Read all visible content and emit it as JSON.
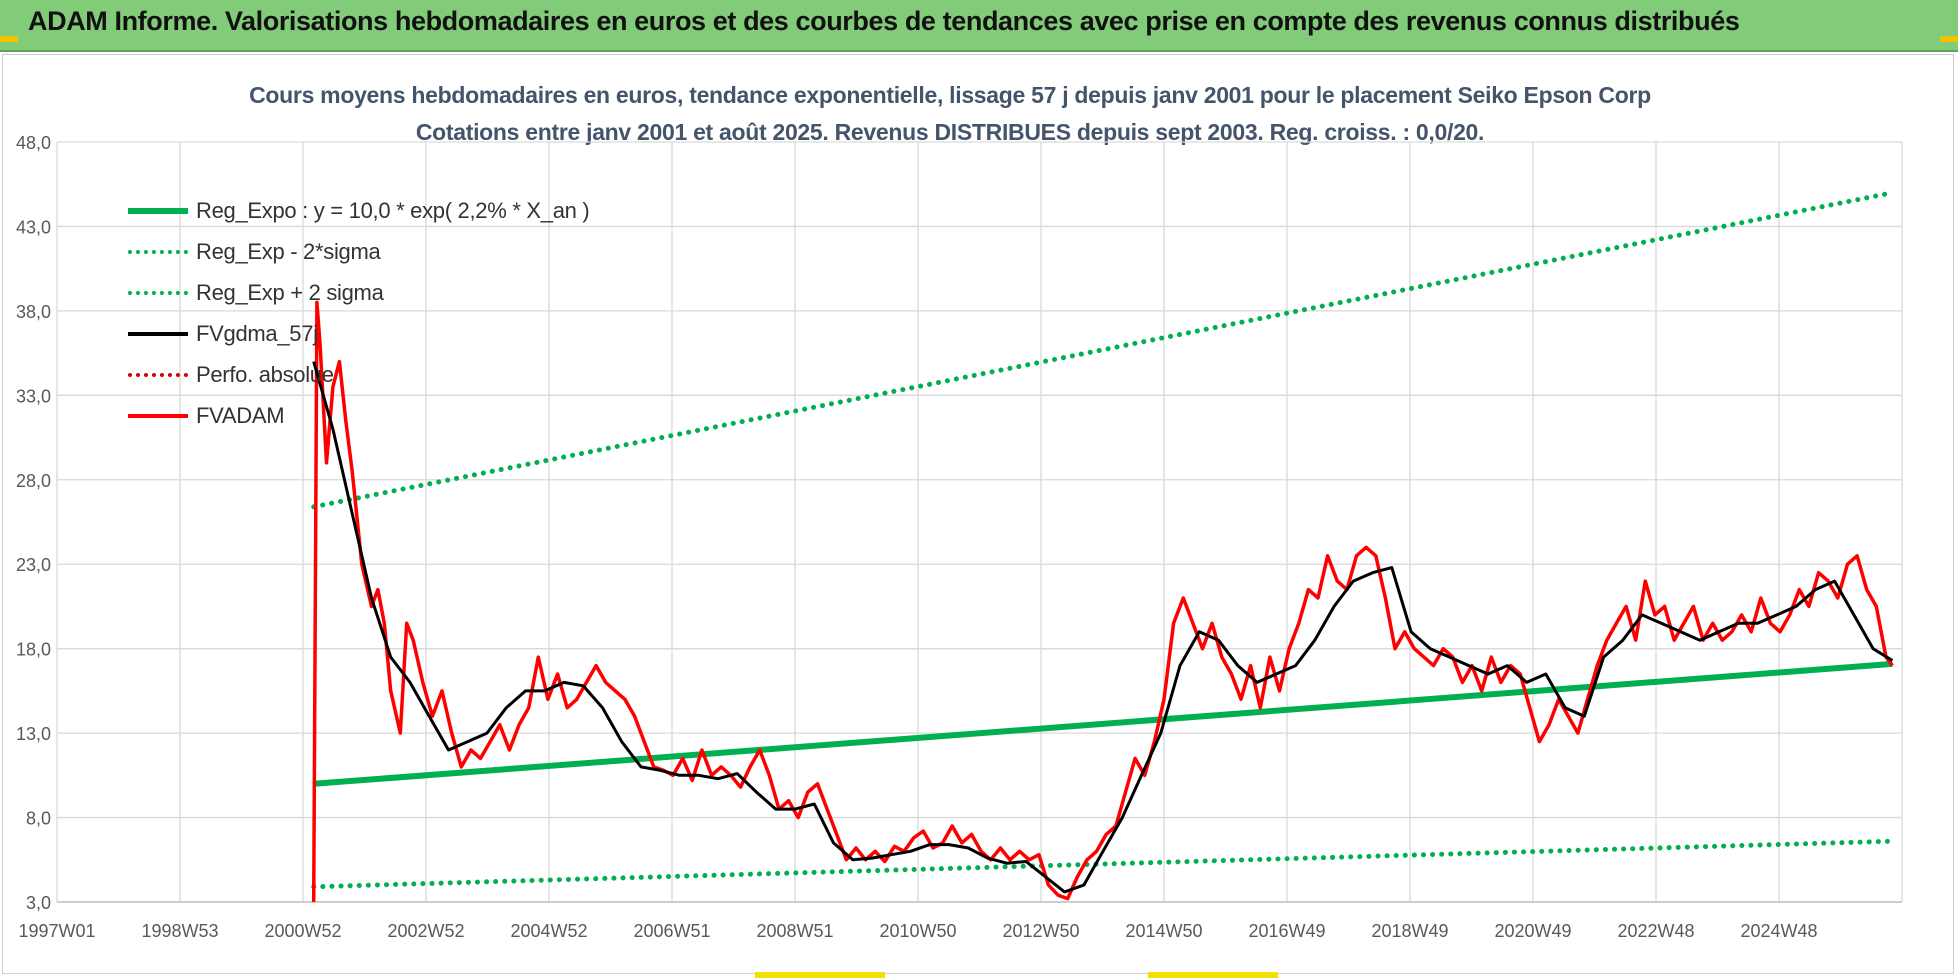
{
  "banner": {
    "title": "ADAM Informe. Valorisations hebdomadaires en euros et des courbes de tendances avec prise en compte des revenus connus distribués",
    "background": "#82cb79"
  },
  "chart_data": {
    "type": "line",
    "title_line1": "Cours moyens hebdomadaires en euros, tendance exponentielle, lissage 57 j depuis janv 2001  pour le placement Seiko Epson Corp",
    "title_line2": "Cotations entre janv 2001 et août 2025.  Revenus DISTRIBUES depuis sept 2003.  Reg. croiss. : 0,0/20.",
    "y_ticks": [
      "3,0",
      "8,0",
      "13,0",
      "18,0",
      "23,0",
      "28,0",
      "33,0",
      "38,0",
      "43,0",
      "48,0"
    ],
    "ylim": [
      3,
      48
    ],
    "x_ticks": [
      "1997W01",
      "1998W53",
      "2000W52",
      "2002W52",
      "2004W52",
      "2006W51",
      "2008W51",
      "2010W50",
      "2012W50",
      "2014W50",
      "2016W49",
      "2018W49",
      "2020W49",
      "2022W48",
      "2024W48"
    ],
    "xlim": [
      1997.0,
      2025.75
    ],
    "grid": true,
    "legend_position": "top-left",
    "series": [
      {
        "name": "Reg_Expo : y = 10,0 * exp( 2,2% *  X_an )",
        "color": "#00b050",
        "style": "solid",
        "x": [
          2001.0,
          2025.6
        ],
        "y": [
          10.0,
          17.1
        ]
      },
      {
        "name": "Reg_Exp - 2*sigma",
        "color": "#00b050",
        "style": "dotted",
        "x": [
          2001.0,
          2025.6
        ],
        "y": [
          3.9,
          6.6
        ]
      },
      {
        "name": "Reg_Exp + 2 sigma",
        "color": "#00b050",
        "style": "dotted",
        "x": [
          2001.0,
          2025.6
        ],
        "y": [
          26.4,
          45.0
        ]
      },
      {
        "name": "FVgdma_57j",
        "color": "#000000",
        "style": "solid",
        "x": [
          2001.0,
          2001.3,
          2001.6,
          2001.9,
          2002.2,
          2002.5,
          2002.8,
          2003.1,
          2003.4,
          2003.7,
          2004.0,
          2004.3,
          2004.6,
          2004.9,
          2005.2,
          2005.5,
          2005.8,
          2006.1,
          2006.4,
          2006.7,
          2007.0,
          2007.3,
          2007.6,
          2007.9,
          2008.2,
          2008.5,
          2008.8,
          2009.1,
          2009.4,
          2009.7,
          2010.0,
          2010.3,
          2010.6,
          2010.9,
          2011.2,
          2011.5,
          2011.8,
          2012.1,
          2012.4,
          2012.7,
          2013.0,
          2013.3,
          2013.6,
          2013.9,
          2014.2,
          2014.5,
          2014.8,
          2015.1,
          2015.4,
          2015.7,
          2016.0,
          2016.3,
          2016.6,
          2016.9,
          2017.2,
          2017.5,
          2017.8,
          2018.1,
          2018.4,
          2018.7,
          2019.0,
          2019.3,
          2019.6,
          2019.9,
          2020.2,
          2020.5,
          2020.8,
          2021.1,
          2021.4,
          2021.7,
          2022.0,
          2022.3,
          2022.6,
          2022.9,
          2023.2,
          2023.5,
          2023.8,
          2024.1,
          2024.4,
          2024.7,
          2025.0,
          2025.3,
          2025.6
        ],
        "y": [
          35.0,
          31.0,
          26.0,
          21.0,
          17.5,
          16.0,
          14.0,
          12.0,
          12.5,
          13.0,
          14.5,
          15.5,
          15.5,
          16.0,
          15.8,
          14.5,
          12.5,
          11.0,
          10.8,
          10.5,
          10.5,
          10.3,
          10.6,
          9.5,
          8.5,
          8.5,
          8.8,
          6.5,
          5.5,
          5.6,
          5.8,
          6.0,
          6.4,
          6.4,
          6.2,
          5.6,
          5.3,
          5.4,
          4.5,
          3.6,
          4.0,
          6.0,
          8.0,
          10.5,
          13.0,
          17.0,
          19.0,
          18.5,
          17.0,
          16.0,
          16.5,
          17.0,
          18.5,
          20.5,
          22.0,
          22.5,
          22.8,
          19.0,
          18.0,
          17.5,
          17.0,
          16.5,
          17.0,
          16.0,
          16.5,
          14.5,
          14.0,
          17.5,
          18.5,
          20.0,
          19.5,
          19.0,
          18.5,
          19.0,
          19.5,
          19.5,
          20.0,
          20.5,
          21.5,
          22.0,
          20.0,
          18.0,
          17.3
        ]
      },
      {
        "name": "Perfo. absolue",
        "color": "#e00000",
        "style": "dotted",
        "x": [],
        "y": []
      },
      {
        "name": "FVADAM",
        "color": "#ff0000",
        "style": "solid",
        "x": [
          2001.0,
          2001.05,
          2001.1,
          2001.2,
          2001.3,
          2001.4,
          2001.5,
          2001.6,
          2001.75,
          2001.9,
          2002.0,
          2002.1,
          2002.2,
          2002.35,
          2002.45,
          2002.55,
          2002.7,
          2002.85,
          2003.0,
          2003.15,
          2003.3,
          2003.45,
          2003.6,
          2003.75,
          2003.9,
          2004.05,
          2004.2,
          2004.35,
          2004.5,
          2004.65,
          2004.8,
          2004.95,
          2005.1,
          2005.25,
          2005.4,
          2005.55,
          2005.7,
          2005.85,
          2006.0,
          2006.15,
          2006.3,
          2006.45,
          2006.6,
          2006.75,
          2006.9,
          2007.05,
          2007.2,
          2007.35,
          2007.5,
          2007.65,
          2007.8,
          2007.95,
          2008.1,
          2008.25,
          2008.4,
          2008.55,
          2008.7,
          2008.85,
          2009.0,
          2009.15,
          2009.3,
          2009.45,
          2009.6,
          2009.75,
          2009.9,
          2010.05,
          2010.2,
          2010.35,
          2010.5,
          2010.65,
          2010.8,
          2010.95,
          2011.1,
          2011.25,
          2011.4,
          2011.55,
          2011.7,
          2011.85,
          2012.0,
          2012.15,
          2012.3,
          2012.45,
          2012.6,
          2012.75,
          2012.9,
          2013.05,
          2013.2,
          2013.35,
          2013.5,
          2013.65,
          2013.8,
          2013.95,
          2014.1,
          2014.25,
          2014.4,
          2014.55,
          2014.7,
          2014.85,
          2015.0,
          2015.15,
          2015.3,
          2015.45,
          2015.6,
          2015.75,
          2015.9,
          2016.05,
          2016.2,
          2016.35,
          2016.5,
          2016.65,
          2016.8,
          2016.95,
          2017.1,
          2017.25,
          2017.4,
          2017.55,
          2017.7,
          2017.85,
          2018.0,
          2018.15,
          2018.3,
          2018.45,
          2018.6,
          2018.75,
          2018.9,
          2019.05,
          2019.2,
          2019.35,
          2019.5,
          2019.65,
          2019.8,
          2019.95,
          2020.1,
          2020.25,
          2020.4,
          2020.55,
          2020.7,
          2020.85,
          2021.0,
          2021.15,
          2021.3,
          2021.45,
          2021.6,
          2021.75,
          2021.9,
          2022.05,
          2022.2,
          2022.35,
          2022.5,
          2022.65,
          2022.8,
          2022.95,
          2023.1,
          2023.25,
          2023.4,
          2023.55,
          2023.7,
          2023.85,
          2024.0,
          2024.15,
          2024.3,
          2024.45,
          2024.6,
          2024.75,
          2024.9,
          2025.05,
          2025.2,
          2025.35,
          2025.5,
          2025.6
        ],
        "y": [
          3.0,
          38.5,
          36.0,
          29.0,
          33.5,
          35.0,
          31.5,
          28.5,
          23.0,
          20.5,
          21.5,
          19.5,
          15.5,
          13.0,
          19.5,
          18.5,
          16.0,
          14.0,
          15.5,
          13.0,
          11.0,
          12.0,
          11.5,
          12.5,
          13.5,
          12.0,
          13.5,
          14.5,
          17.5,
          15.0,
          16.5,
          14.5,
          15.0,
          16.0,
          17.0,
          16.0,
          15.5,
          15.0,
          14.0,
          12.5,
          11.0,
          10.8,
          10.5,
          11.5,
          10.2,
          12.0,
          10.5,
          11.0,
          10.5,
          9.8,
          11.0,
          12.0,
          10.5,
          8.5,
          9.0,
          8.0,
          9.5,
          10.0,
          8.5,
          7.0,
          5.5,
          6.2,
          5.5,
          6.0,
          5.4,
          6.3,
          6.0,
          6.8,
          7.2,
          6.2,
          6.5,
          7.5,
          6.5,
          7.0,
          6.0,
          5.5,
          6.2,
          5.5,
          6.0,
          5.5,
          5.8,
          4.0,
          3.4,
          3.2,
          4.5,
          5.5,
          6.0,
          7.0,
          7.5,
          9.5,
          11.5,
          10.5,
          12.5,
          15.0,
          19.5,
          21.0,
          19.5,
          18.0,
          19.5,
          17.5,
          16.5,
          15.0,
          17.0,
          14.5,
          17.5,
          15.5,
          18.0,
          19.5,
          21.5,
          21.0,
          23.5,
          22.0,
          21.5,
          23.5,
          24.0,
          23.5,
          21.0,
          18.0,
          19.0,
          18.0,
          17.5,
          17.0,
          18.0,
          17.5,
          16.0,
          17.0,
          15.5,
          17.5,
          16.0,
          17.0,
          16.5,
          14.5,
          12.5,
          13.5,
          15.0,
          14.0,
          13.0,
          15.0,
          17.0,
          18.5,
          19.5,
          20.5,
          18.5,
          22.0,
          20.0,
          20.5,
          18.5,
          19.5,
          20.5,
          18.5,
          19.5,
          18.5,
          19.0,
          20.0,
          19.0,
          21.0,
          19.5,
          19.0,
          20.0,
          21.5,
          20.5,
          22.5,
          22.0,
          21.0,
          23.0,
          23.5,
          21.5,
          20.5,
          17.5,
          17.0
        ]
      }
    ]
  }
}
